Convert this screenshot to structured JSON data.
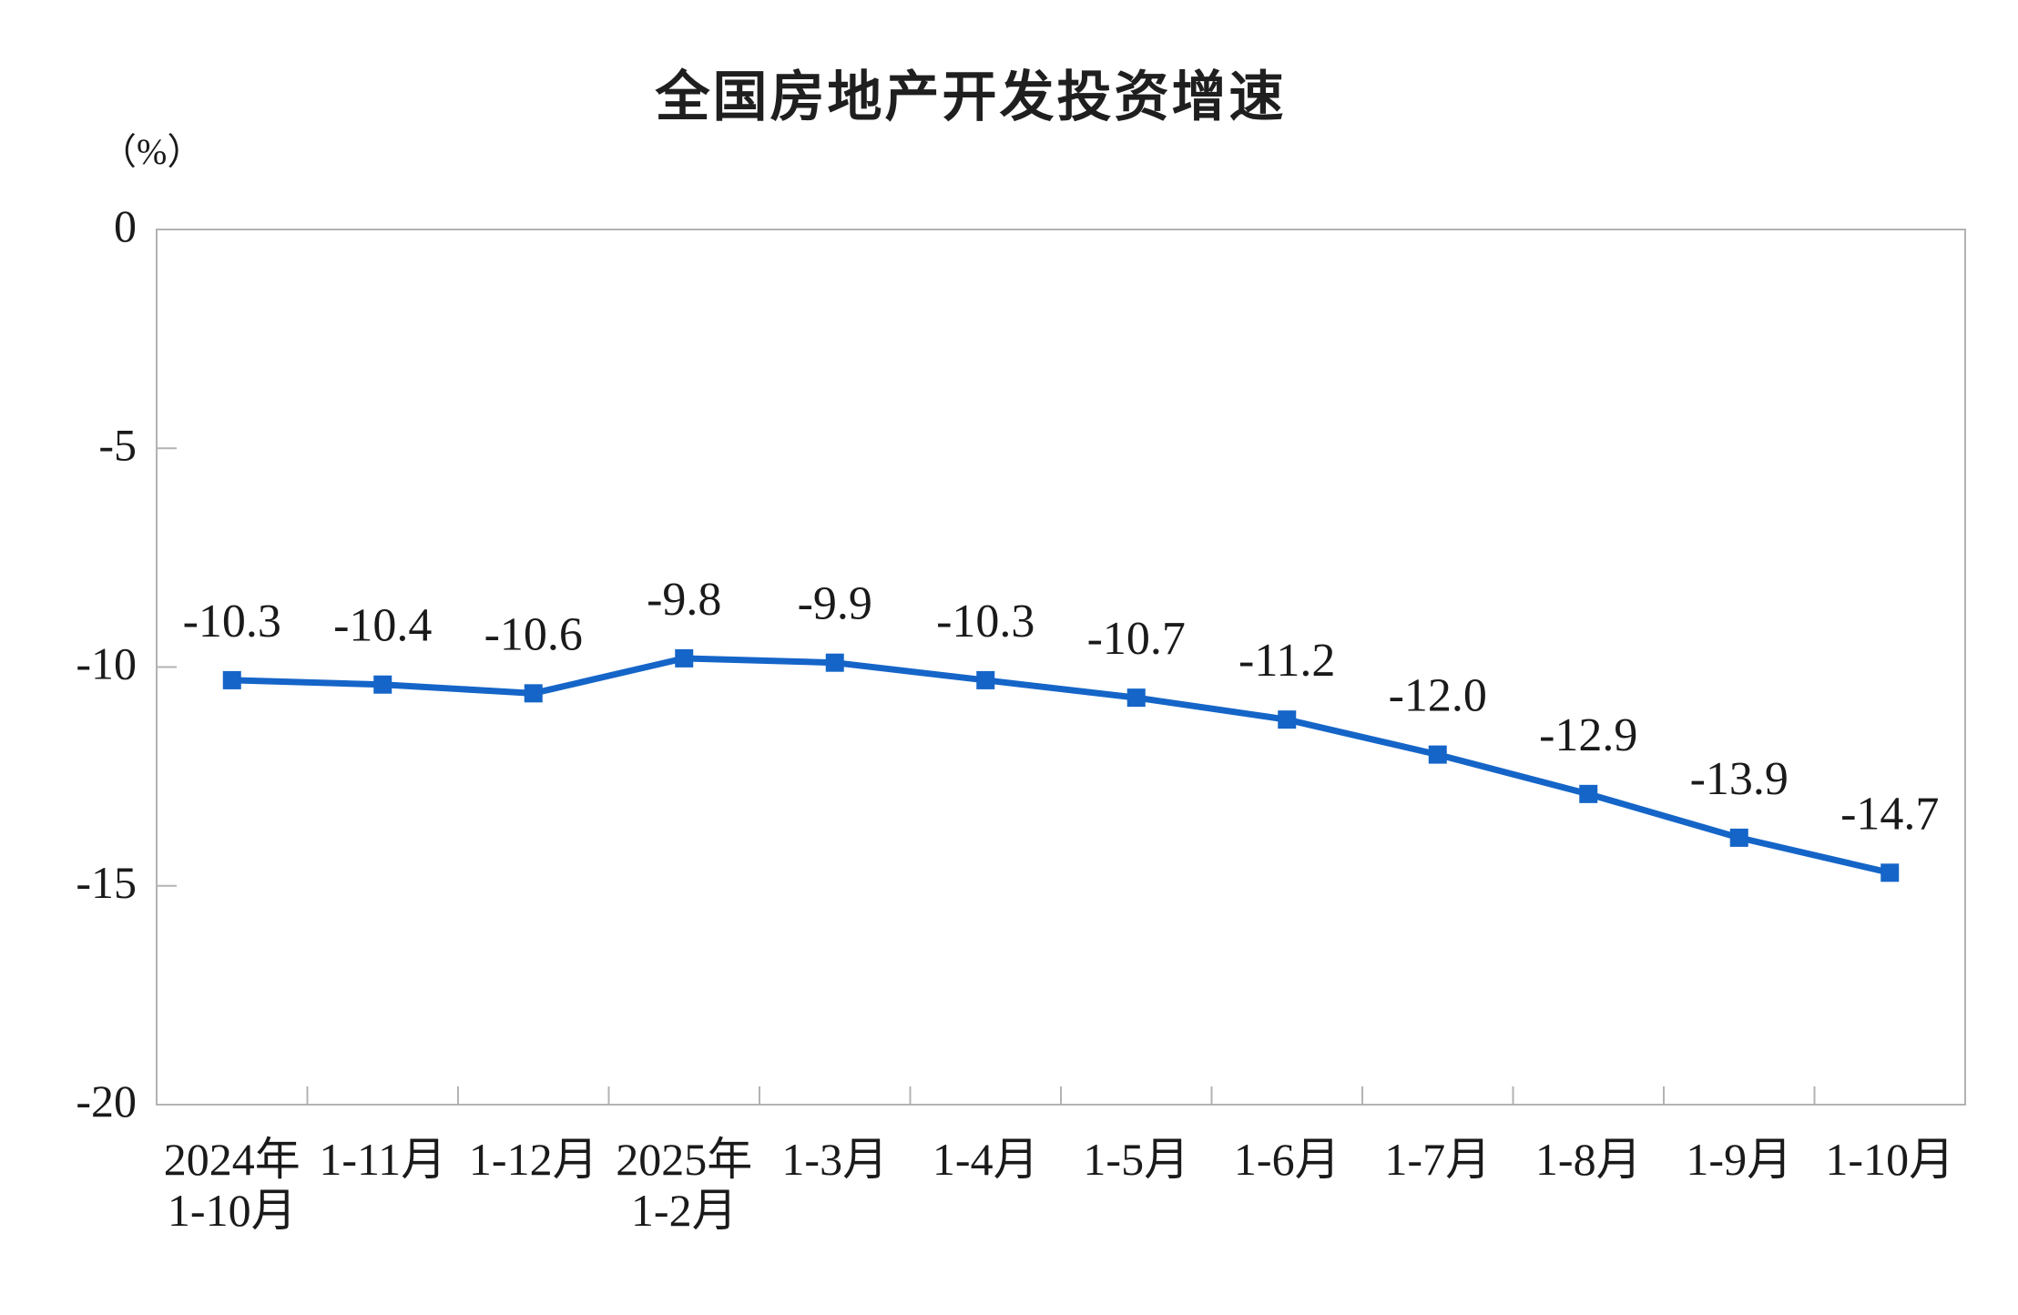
{
  "page": {
    "background": "#ffffff"
  },
  "header": {
    "title": "全国房地产开发投资增速",
    "unit_label": "（%）"
  },
  "chart_data": {
    "type": "line",
    "title": "全国房地产开发投资增速",
    "unit": "%",
    "categories": [
      [
        "2024年",
        "1-10月"
      ],
      [
        "1-11月"
      ],
      [
        "1-12月"
      ],
      [
        "2025年",
        "1-2月"
      ],
      [
        "1-3月"
      ],
      [
        "1-4月"
      ],
      [
        "1-5月"
      ],
      [
        "1-6月"
      ],
      [
        "1-7月"
      ],
      [
        "1-8月"
      ],
      [
        "1-9月"
      ],
      [
        "1-10月"
      ]
    ],
    "values": [
      -10.3,
      -10.4,
      -10.6,
      -9.8,
      -9.9,
      -10.3,
      -10.7,
      -11.2,
      -12.0,
      -12.9,
      -13.9,
      -14.7
    ],
    "labels": [
      "-10.3",
      "-10.4",
      "-10.6",
      "-9.8",
      "-9.9",
      "-10.3",
      "-10.7",
      "-11.2",
      "-12.0",
      "-12.9",
      "-13.9",
      "-14.7"
    ],
    "series_name": "全国房地产开发投资增速",
    "xlabel": "",
    "ylabel": "（%）",
    "ylim": [
      -20,
      0
    ],
    "yticks": [
      0,
      -5,
      -10,
      -15,
      -20
    ],
    "grid": false,
    "legend_position": "none",
    "marker_shape": "square",
    "colors": {
      "line": "#1565C8",
      "marker": "#1565C8",
      "axis": "#b3b3b3",
      "text": "#1a1a1a",
      "title_text": "#1f1f1f"
    }
  }
}
